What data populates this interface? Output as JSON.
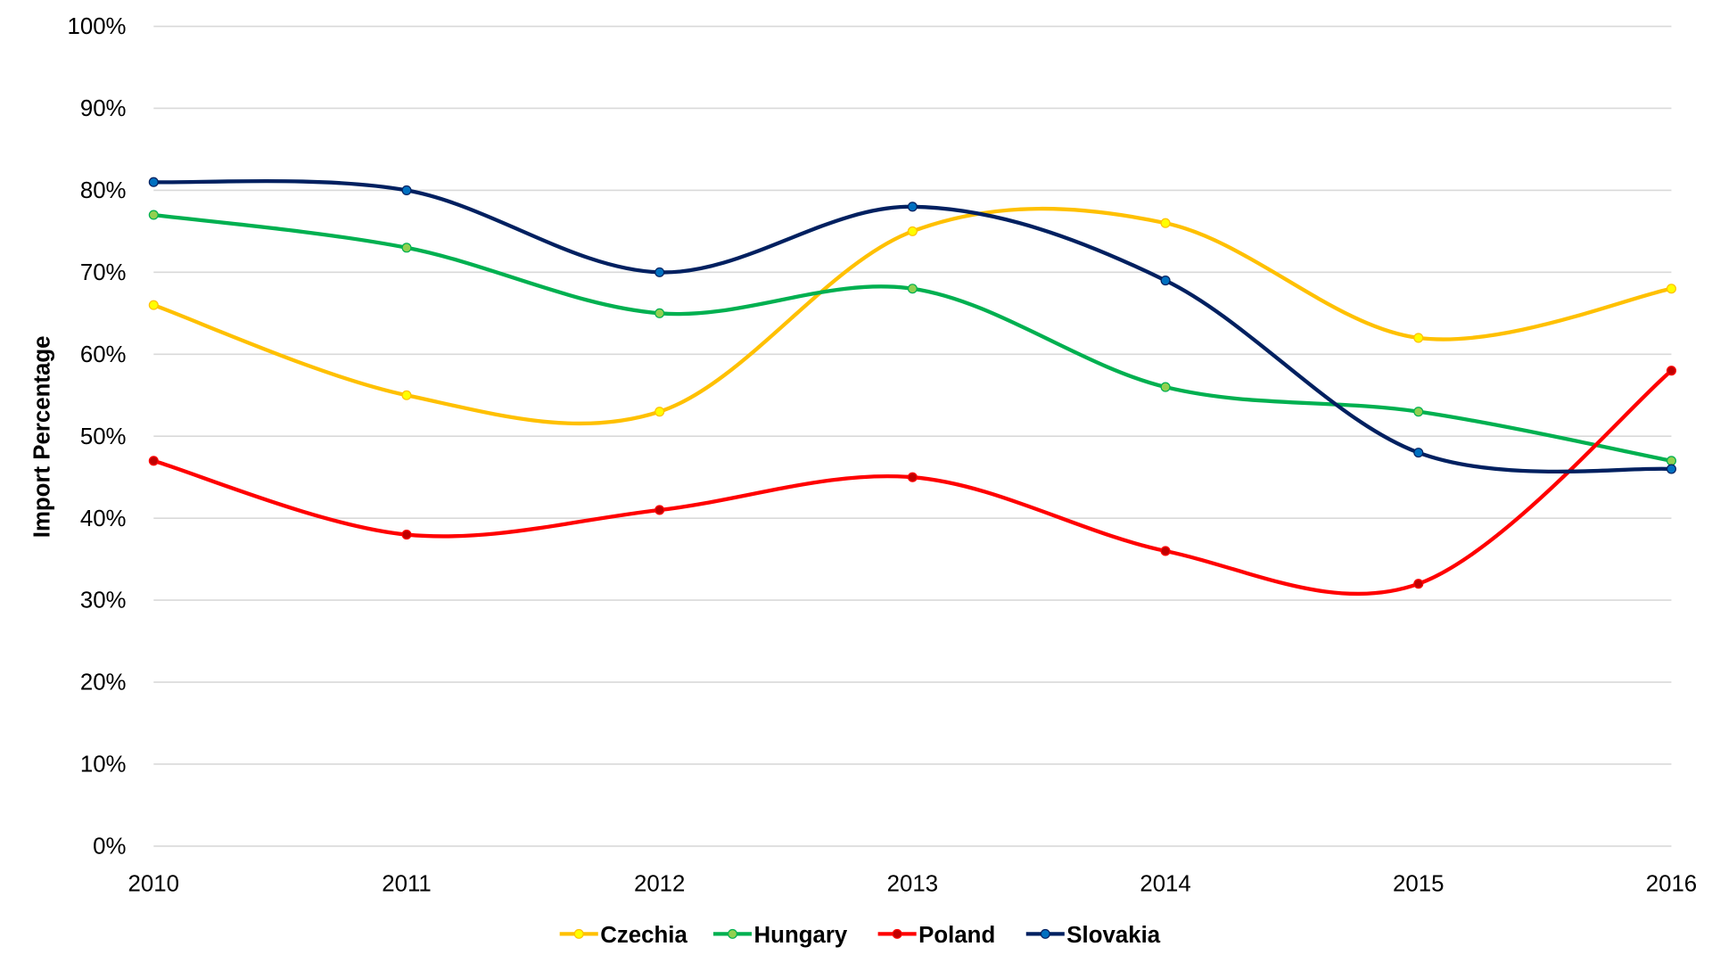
{
  "chart_data": {
    "type": "line",
    "title": "",
    "xlabel": "",
    "ylabel": "Import Percentage",
    "ylim": [
      0,
      100
    ],
    "y_ticks": [
      0,
      10,
      20,
      30,
      40,
      50,
      60,
      70,
      80,
      90,
      100
    ],
    "y_tick_labels": [
      "0%",
      "10%",
      "20%",
      "30%",
      "40%",
      "50%",
      "60%",
      "70%",
      "80%",
      "90%",
      "100%"
    ],
    "categories": [
      "2010",
      "2011",
      "2012",
      "2013",
      "2014",
      "2015",
      "2016"
    ],
    "grid": true,
    "smooth": true,
    "legend_position": "bottom",
    "series": [
      {
        "name": "Czechia",
        "color": "#FFC000",
        "marker_color": "#FFFF00",
        "values": [
          66,
          55,
          53,
          75,
          76,
          62,
          68
        ]
      },
      {
        "name": "Hungary",
        "color": "#00B050",
        "marker_color": "#92D050",
        "values": [
          77,
          73,
          65,
          68,
          56,
          53,
          47
        ]
      },
      {
        "name": "Poland",
        "color": "#FF0000",
        "marker_color": "#C00000",
        "values": [
          47,
          38,
          41,
          45,
          36,
          32,
          58
        ]
      },
      {
        "name": "Slovakia",
        "color": "#002060",
        "marker_color": "#0070C0",
        "values": [
          81,
          80,
          70,
          78,
          69,
          48,
          46
        ]
      }
    ]
  }
}
